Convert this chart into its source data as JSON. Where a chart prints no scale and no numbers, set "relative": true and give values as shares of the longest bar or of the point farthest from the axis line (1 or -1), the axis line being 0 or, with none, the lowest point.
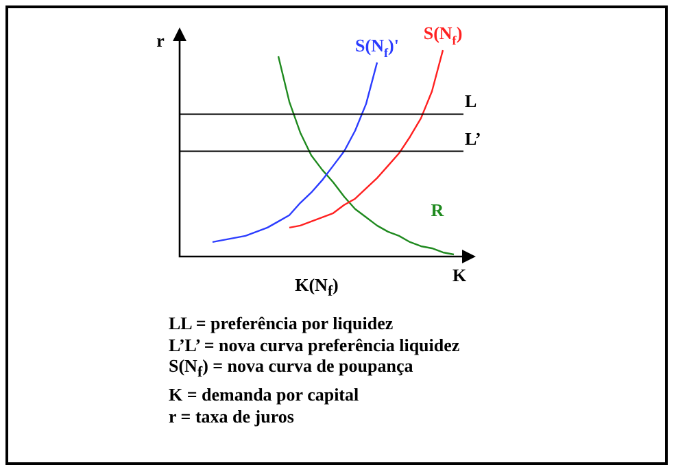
{
  "chart_data": {
    "type": "line",
    "relative": true,
    "xlabel": "K",
    "ylabel": "r",
    "legend": false,
    "marker": "none",
    "line_style": "solid",
    "categories": [
      null,
      null,
      null,
      null,
      null,
      null,
      null,
      null,
      null,
      null,
      null,
      null,
      null,
      null,
      null,
      null,
      null,
      null,
      null,
      null,
      null,
      null,
      null,
      null,
      null,
      null,
      null,
      null
    ],
    "series": [
      {
        "name": "S(N$_{f}$)'",
        "color": "#2b3cff",
        "values": [
          null,
          null,
          null,
          0.07,
          0.08,
          0.09,
          0.1,
          0.12,
          0.14,
          0.17,
          0.2,
          0.26,
          0.31,
          0.37,
          0.44,
          0.51,
          0.61,
          0.74,
          0.94,
          null,
          null,
          null,
          null,
          null,
          null,
          null,
          null,
          null
        ]
      },
      {
        "name": "S(N$_{f}$)",
        "color": "#ff2020",
        "values": [
          null,
          null,
          null,
          null,
          null,
          null,
          null,
          null,
          null,
          null,
          0.14,
          0.15,
          0.17,
          0.19,
          0.21,
          0.25,
          0.28,
          0.33,
          0.38,
          0.44,
          0.5,
          0.58,
          0.67,
          0.8,
          1,
          null,
          null,
          null
        ]
      },
      {
        "name": "R",
        "color": "#1f8a1f",
        "values": [
          null,
          null,
          null,
          null,
          null,
          null,
          null,
          null,
          null,
          0.97,
          0.75,
          0.6,
          0.49,
          0.42,
          0.36,
          0.29,
          0.23,
          0.19,
          0.15,
          0.12,
          0.1,
          0.07,
          0.05,
          0.04,
          0.02,
          0.01,
          null,
          null
        ]
      }
    ],
    "ref_lines": [
      {
        "axis": "y",
        "value": 0.69,
        "label": "L",
        "color": "#000000"
      },
      {
        "axis": "y",
        "value": 0.51,
        "label": "L’",
        "color": "#000000"
      }
    ],
    "annotations": [
      "K(N$_{f}$)",
      "LL = preferência por liquidez",
      "L’L’ = nova curva preferência liquidez",
      "S(N$_{f}$) = nova curva de poupança",
      "K = demanda por capital",
      "r = taxa de juros"
    ]
  }
}
